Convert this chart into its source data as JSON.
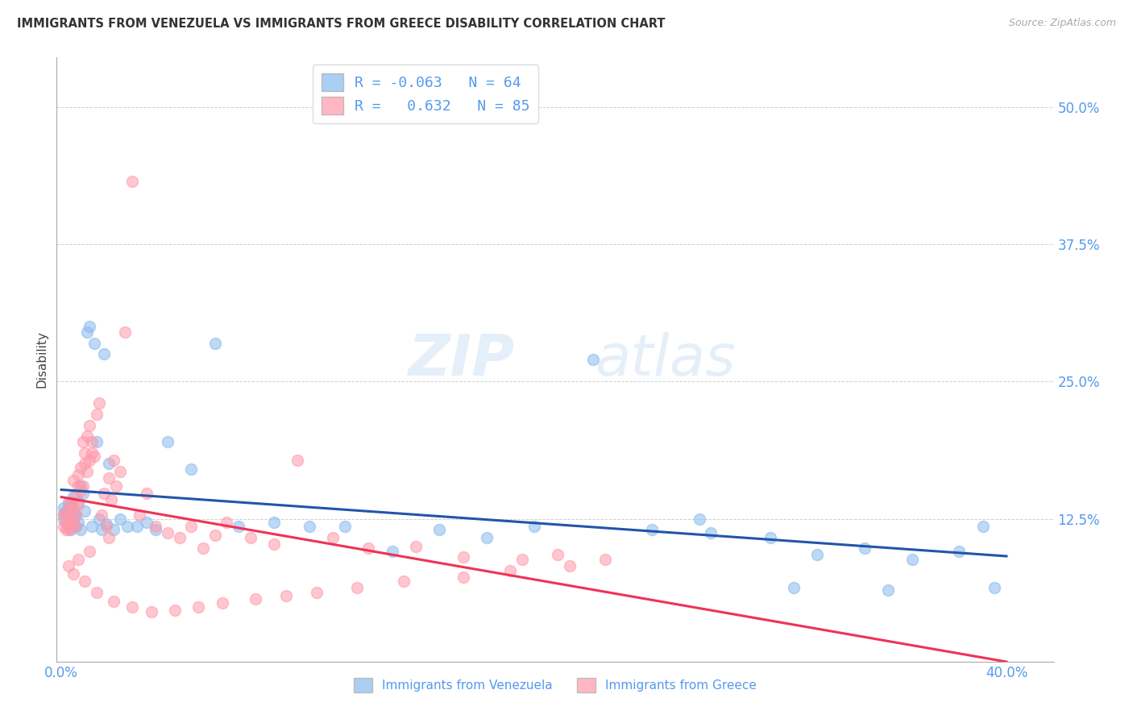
{
  "title": "IMMIGRANTS FROM VENEZUELA VS IMMIGRANTS FROM GREECE DISABILITY CORRELATION CHART",
  "source": "Source: ZipAtlas.com",
  "ylabel": "Disability",
  "ytick_values": [
    0.125,
    0.25,
    0.375,
    0.5
  ],
  "xlim": [
    -0.002,
    0.42
  ],
  "ylim": [
    -0.005,
    0.545
  ],
  "legend_r_venezuela": "-0.063",
  "legend_n_venezuela": "64",
  "legend_r_greece": "0.632",
  "legend_n_greece": "85",
  "color_venezuela": "#88BBEE",
  "color_greece": "#FF99AA",
  "trendline_color_venezuela": "#2255AA",
  "trendline_color_greece": "#EE3355",
  "watermark_zip": "ZIP",
  "watermark_atlas": "atlas",
  "venezuela_x": [
    0.001,
    0.001,
    0.001,
    0.002,
    0.002,
    0.002,
    0.003,
    0.003,
    0.003,
    0.003,
    0.004,
    0.004,
    0.004,
    0.005,
    0.005,
    0.005,
    0.006,
    0.006,
    0.007,
    0.007,
    0.008,
    0.008,
    0.009,
    0.01,
    0.011,
    0.012,
    0.013,
    0.014,
    0.015,
    0.016,
    0.017,
    0.018,
    0.019,
    0.02,
    0.022,
    0.025,
    0.028,
    0.032,
    0.036,
    0.04,
    0.045,
    0.055,
    0.065,
    0.075,
    0.09,
    0.105,
    0.12,
    0.14,
    0.16,
    0.18,
    0.2,
    0.225,
    0.25,
    0.275,
    0.3,
    0.32,
    0.34,
    0.36,
    0.38,
    0.395,
    0.27,
    0.31,
    0.35,
    0.39
  ],
  "venezuela_y": [
    0.13,
    0.125,
    0.135,
    0.128,
    0.132,
    0.122,
    0.14,
    0.12,
    0.135,
    0.118,
    0.127,
    0.138,
    0.115,
    0.145,
    0.125,
    0.13,
    0.128,
    0.118,
    0.14,
    0.122,
    0.155,
    0.115,
    0.148,
    0.132,
    0.295,
    0.3,
    0.118,
    0.285,
    0.195,
    0.125,
    0.115,
    0.275,
    0.12,
    0.175,
    0.115,
    0.125,
    0.118,
    0.118,
    0.122,
    0.115,
    0.195,
    0.17,
    0.285,
    0.118,
    0.122,
    0.118,
    0.118,
    0.095,
    0.115,
    0.108,
    0.118,
    0.27,
    0.115,
    0.112,
    0.108,
    0.092,
    0.098,
    0.088,
    0.095,
    0.062,
    0.125,
    0.062,
    0.06,
    0.118
  ],
  "greece_x": [
    0.001,
    0.001,
    0.002,
    0.002,
    0.002,
    0.003,
    0.003,
    0.003,
    0.004,
    0.004,
    0.004,
    0.005,
    0.005,
    0.005,
    0.006,
    0.006,
    0.006,
    0.007,
    0.007,
    0.007,
    0.008,
    0.008,
    0.009,
    0.009,
    0.01,
    0.01,
    0.011,
    0.011,
    0.012,
    0.012,
    0.013,
    0.013,
    0.014,
    0.015,
    0.016,
    0.017,
    0.018,
    0.019,
    0.02,
    0.021,
    0.022,
    0.023,
    0.025,
    0.027,
    0.03,
    0.033,
    0.036,
    0.04,
    0.045,
    0.05,
    0.055,
    0.06,
    0.065,
    0.07,
    0.08,
    0.09,
    0.1,
    0.115,
    0.13,
    0.15,
    0.17,
    0.195,
    0.21,
    0.23,
    0.215,
    0.19,
    0.17,
    0.145,
    0.125,
    0.108,
    0.095,
    0.082,
    0.068,
    0.058,
    0.048,
    0.038,
    0.03,
    0.022,
    0.015,
    0.01,
    0.005,
    0.003,
    0.007,
    0.012,
    0.02
  ],
  "greece_y": [
    0.118,
    0.128,
    0.115,
    0.13,
    0.122,
    0.125,
    0.138,
    0.115,
    0.14,
    0.128,
    0.118,
    0.135,
    0.122,
    0.16,
    0.145,
    0.128,
    0.118,
    0.165,
    0.138,
    0.155,
    0.172,
    0.15,
    0.195,
    0.155,
    0.185,
    0.175,
    0.2,
    0.168,
    0.21,
    0.178,
    0.195,
    0.185,
    0.182,
    0.22,
    0.23,
    0.128,
    0.148,
    0.118,
    0.162,
    0.142,
    0.178,
    0.155,
    0.168,
    0.295,
    0.432,
    0.128,
    0.148,
    0.118,
    0.112,
    0.108,
    0.118,
    0.098,
    0.11,
    0.122,
    0.108,
    0.102,
    0.178,
    0.108,
    0.098,
    0.1,
    0.09,
    0.088,
    0.092,
    0.088,
    0.082,
    0.078,
    0.072,
    0.068,
    0.062,
    0.058,
    0.055,
    0.052,
    0.048,
    0.045,
    0.042,
    0.04,
    0.045,
    0.05,
    0.058,
    0.068,
    0.075,
    0.082,
    0.088,
    0.095,
    0.108
  ]
}
